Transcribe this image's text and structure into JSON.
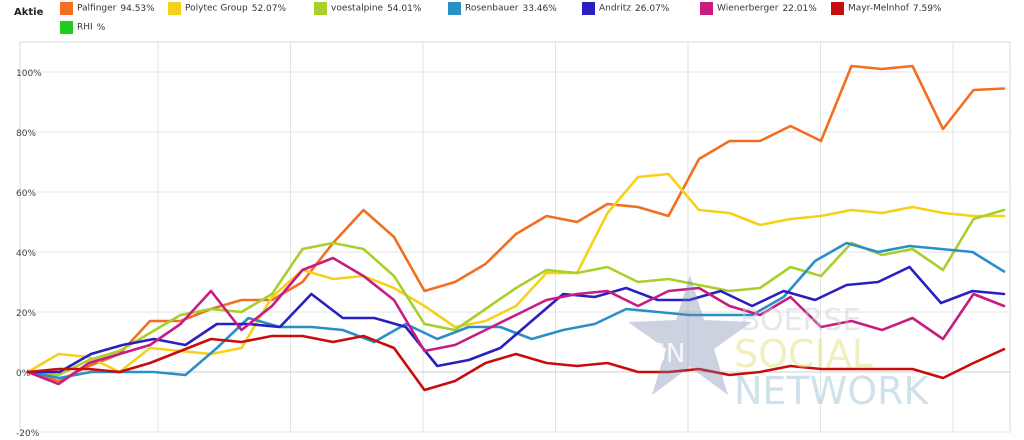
{
  "legend": {
    "title": "Aktie"
  },
  "watermark": {
    "logo": "BSN",
    "line1": "BOERSE",
    "line2": "SOCIAL",
    "line3": "NETWORK"
  },
  "chart_data": {
    "type": "line",
    "title": "",
    "xlabel": "",
    "ylabel": "",
    "ylim": [
      -20,
      110
    ],
    "yticks": [
      -20,
      0,
      20,
      40,
      60,
      80,
      100
    ],
    "ytick_labels": [
      "-20%",
      "0%",
      "20%",
      "40%",
      "60%",
      "80%",
      "100%"
    ],
    "grid": true,
    "legend_position": "top-left",
    "series": [
      {
        "name": "Palfinger",
        "label": "94.53%",
        "color": "#f26f21",
        "values": [
          0,
          -3,
          2,
          6,
          17,
          17,
          21,
          24,
          24,
          30,
          43,
          54,
          45,
          27,
          30,
          36,
          46,
          52,
          50,
          56,
          55,
          52,
          71,
          77,
          77,
          82,
          77,
          102,
          101,
          102,
          81,
          94,
          94.5
        ]
      },
      {
        "name": "Polytec Group",
        "label": "52.07%",
        "color": "#f5d21a",
        "values": [
          0,
          6,
          5,
          0,
          8,
          7,
          6,
          8,
          25,
          34,
          31,
          32,
          28,
          22,
          15,
          17,
          22,
          33,
          33,
          53,
          65,
          66,
          54,
          53,
          49,
          51,
          52,
          54,
          53,
          55,
          53,
          52,
          52
        ]
      },
      {
        "name": "voestalpine",
        "label": "54.01%",
        "color": "#a8d02a",
        "values": [
          0,
          -1,
          4,
          7,
          13,
          19,
          21,
          20,
          26,
          41,
          43,
          41,
          32,
          16,
          14,
          21,
          28,
          34,
          33,
          35,
          30,
          31,
          29,
          27,
          28,
          35,
          32,
          43,
          39,
          41,
          34,
          51,
          54
        ]
      },
      {
        "name": "Rosenbauer",
        "label": "33.46%",
        "color": "#2b8fc7",
        "values": [
          0,
          -2,
          0,
          0,
          0,
          -1,
          8,
          18,
          15,
          15,
          14,
          10,
          16,
          11,
          15,
          15,
          11,
          14,
          16,
          21,
          20,
          19,
          19,
          19,
          25,
          37,
          43,
          40,
          42,
          41,
          40,
          33.5
        ]
      },
      {
        "name": "Andritz",
        "label": "26.07%",
        "color": "#2a1fc0",
        "values": [
          0,
          0,
          6,
          9,
          11,
          9,
          16,
          16,
          15,
          26,
          18,
          18,
          15,
          2,
          4,
          8,
          17,
          26,
          25,
          28,
          24,
          24,
          27,
          22,
          27,
          24,
          29,
          30,
          35,
          23,
          27,
          26
        ]
      },
      {
        "name": "Wienerberger",
        "label": "22.01%",
        "color": "#c71c82",
        "values": [
          0,
          -4,
          3,
          6,
          9,
          16,
          27,
          14,
          22,
          34,
          38,
          32,
          24,
          7,
          9,
          14,
          19,
          24,
          26,
          27,
          22,
          27,
          28,
          22,
          19,
          25,
          15,
          17,
          14,
          18,
          11,
          26,
          22
        ]
      },
      {
        "name": "Mayr-Melnhof",
        "label": "7.59%",
        "color": "#c80d0d",
        "values": [
          0,
          1,
          1,
          0,
          3,
          7,
          11,
          10,
          12,
          12,
          10,
          12,
          8,
          -6,
          -3,
          3,
          6,
          3,
          2,
          3,
          0,
          0,
          1,
          -1,
          0,
          2,
          1,
          1,
          1,
          1,
          -2,
          3,
          7.6
        ]
      },
      {
        "name": "RHI",
        "label": "%",
        "color": "#1fcc1f",
        "values": []
      }
    ]
  }
}
